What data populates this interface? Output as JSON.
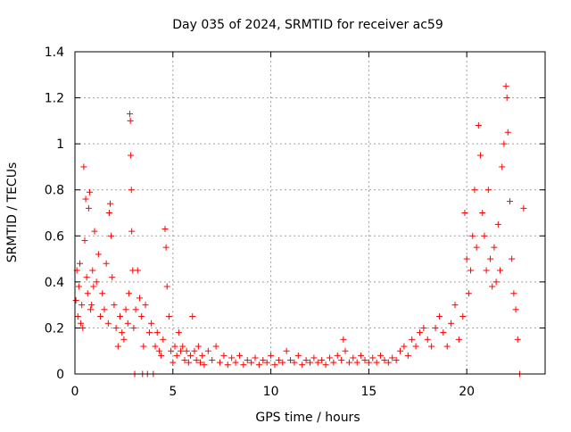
{
  "chart_data": {
    "type": "scatter",
    "title": "Day 035 of 2024, SRMTID for receiver ac59",
    "xlabel": "GPS time / hours",
    "ylabel": "SRMTID / TECUs",
    "xlim": [
      0,
      24
    ],
    "ylim": [
      0,
      1.4
    ],
    "x_ticks": [
      0,
      5,
      10,
      15,
      20
    ],
    "x_tick_labels": [
      "0",
      "5",
      "10",
      "15",
      "20"
    ],
    "y_ticks": [
      0,
      0.2,
      0.4,
      0.6,
      0.8,
      1.0,
      1.2,
      1.4
    ],
    "y_tick_labels": [
      "0",
      "0.2",
      "0.4",
      "0.6",
      "0.8",
      "1",
      "1.2",
      "1.4"
    ],
    "grid": true,
    "marker": "+",
    "series": [
      {
        "name": "ac59",
        "color": "#ff0000",
        "points": [
          [
            0.05,
            0.32
          ],
          [
            0.1,
            0.45
          ],
          [
            0.15,
            0.25
          ],
          [
            0.2,
            0.38
          ],
          [
            0.25,
            0.48
          ],
          [
            0.3,
            0.22
          ],
          [
            0.35,
            0.3
          ],
          [
            0.4,
            0.2
          ],
          [
            0.45,
            0.9
          ],
          [
            0.5,
            0.58
          ],
          [
            0.55,
            0.76
          ],
          [
            0.6,
            0.42
          ],
          [
            0.65,
            0.35
          ],
          [
            0.7,
            0.72
          ],
          [
            0.75,
            0.79
          ],
          [
            0.8,
            0.28
          ],
          [
            0.85,
            0.3
          ],
          [
            0.9,
            0.45
          ],
          [
            0.95,
            0.38
          ],
          [
            1.0,
            0.62
          ],
          [
            1.1,
            0.4
          ],
          [
            1.2,
            0.52
          ],
          [
            1.3,
            0.25
          ],
          [
            1.4,
            0.35
          ],
          [
            1.5,
            0.28
          ],
          [
            1.6,
            0.48
          ],
          [
            1.7,
            0.22
          ],
          [
            1.75,
            0.7
          ],
          [
            1.8,
            0.74
          ],
          [
            1.85,
            0.6
          ],
          [
            1.9,
            0.42
          ],
          [
            2.0,
            0.3
          ],
          [
            2.1,
            0.2
          ],
          [
            2.2,
            0.12
          ],
          [
            2.3,
            0.25
          ],
          [
            2.4,
            0.18
          ],
          [
            2.5,
            0.15
          ],
          [
            2.6,
            0.28
          ],
          [
            2.7,
            0.22
          ],
          [
            2.75,
            0.35
          ],
          [
            2.8,
            1.13
          ],
          [
            2.83,
            1.1
          ],
          [
            2.85,
            0.95
          ],
          [
            2.88,
            0.8
          ],
          [
            2.9,
            0.62
          ],
          [
            2.95,
            0.45
          ],
          [
            3.0,
            0.2
          ],
          [
            3.05,
            0.0
          ],
          [
            3.1,
            0.28
          ],
          [
            3.2,
            0.45
          ],
          [
            3.3,
            0.33
          ],
          [
            3.4,
            0.25
          ],
          [
            3.45,
            0.0
          ],
          [
            3.5,
            0.12
          ],
          [
            3.6,
            0.3
          ],
          [
            3.7,
            0.0
          ],
          [
            3.8,
            0.18
          ],
          [
            3.9,
            0.22
          ],
          [
            4.0,
            0.0
          ],
          [
            4.1,
            0.12
          ],
          [
            4.2,
            0.18
          ],
          [
            4.3,
            0.1
          ],
          [
            4.4,
            0.08
          ],
          [
            4.5,
            0.15
          ],
          [
            4.6,
            0.63
          ],
          [
            4.65,
            0.55
          ],
          [
            4.7,
            0.38
          ],
          [
            4.8,
            0.25
          ],
          [
            4.9,
            0.1
          ],
          [
            5.0,
            0.05
          ],
          [
            5.1,
            0.12
          ],
          [
            5.2,
            0.08
          ],
          [
            5.3,
            0.18
          ],
          [
            5.4,
            0.1
          ],
          [
            5.5,
            0.12
          ],
          [
            5.6,
            0.06
          ],
          [
            5.7,
            0.1
          ],
          [
            5.8,
            0.05
          ],
          [
            5.9,
            0.08
          ],
          [
            6.0,
            0.25
          ],
          [
            6.1,
            0.1
          ],
          [
            6.2,
            0.06
          ],
          [
            6.3,
            0.12
          ],
          [
            6.4,
            0.05
          ],
          [
            6.5,
            0.08
          ],
          [
            6.6,
            0.04
          ],
          [
            6.8,
            0.1
          ],
          [
            7.0,
            0.06
          ],
          [
            7.2,
            0.12
          ],
          [
            7.4,
            0.05
          ],
          [
            7.6,
            0.08
          ],
          [
            7.8,
            0.04
          ],
          [
            8.0,
            0.07
          ],
          [
            8.2,
            0.05
          ],
          [
            8.4,
            0.08
          ],
          [
            8.6,
            0.04
          ],
          [
            8.8,
            0.06
          ],
          [
            9.0,
            0.05
          ],
          [
            9.2,
            0.07
          ],
          [
            9.4,
            0.04
          ],
          [
            9.6,
            0.06
          ],
          [
            9.8,
            0.05
          ],
          [
            10.0,
            0.08
          ],
          [
            10.2,
            0.04
          ],
          [
            10.4,
            0.06
          ],
          [
            10.6,
            0.05
          ],
          [
            10.8,
            0.1
          ],
          [
            11.0,
            0.06
          ],
          [
            11.2,
            0.05
          ],
          [
            11.4,
            0.08
          ],
          [
            11.6,
            0.04
          ],
          [
            11.8,
            0.06
          ],
          [
            12.0,
            0.05
          ],
          [
            12.2,
            0.07
          ],
          [
            12.4,
            0.05
          ],
          [
            12.6,
            0.06
          ],
          [
            12.8,
            0.04
          ],
          [
            13.0,
            0.07
          ],
          [
            13.2,
            0.05
          ],
          [
            13.4,
            0.08
          ],
          [
            13.6,
            0.06
          ],
          [
            13.7,
            0.15
          ],
          [
            13.8,
            0.1
          ],
          [
            14.0,
            0.05
          ],
          [
            14.2,
            0.07
          ],
          [
            14.4,
            0.05
          ],
          [
            14.6,
            0.08
          ],
          [
            14.8,
            0.06
          ],
          [
            15.0,
            0.05
          ],
          [
            15.2,
            0.07
          ],
          [
            15.4,
            0.05
          ],
          [
            15.6,
            0.08
          ],
          [
            15.8,
            0.06
          ],
          [
            16.0,
            0.05
          ],
          [
            16.2,
            0.07
          ],
          [
            16.4,
            0.06
          ],
          [
            16.6,
            0.1
          ],
          [
            16.8,
            0.12
          ],
          [
            17.0,
            0.08
          ],
          [
            17.2,
            0.15
          ],
          [
            17.4,
            0.12
          ],
          [
            17.6,
            0.18
          ],
          [
            17.8,
            0.2
          ],
          [
            18.0,
            0.15
          ],
          [
            18.2,
            0.12
          ],
          [
            18.4,
            0.2
          ],
          [
            18.6,
            0.25
          ],
          [
            18.8,
            0.18
          ],
          [
            19.0,
            0.12
          ],
          [
            19.2,
            0.22
          ],
          [
            19.4,
            0.3
          ],
          [
            19.6,
            0.15
          ],
          [
            19.8,
            0.25
          ],
          [
            19.9,
            0.7
          ],
          [
            20.0,
            0.5
          ],
          [
            20.1,
            0.35
          ],
          [
            20.2,
            0.45
          ],
          [
            20.3,
            0.6
          ],
          [
            20.4,
            0.8
          ],
          [
            20.5,
            0.55
          ],
          [
            20.6,
            1.08
          ],
          [
            20.7,
            0.95
          ],
          [
            20.8,
            0.7
          ],
          [
            20.9,
            0.6
          ],
          [
            21.0,
            0.45
          ],
          [
            21.1,
            0.8
          ],
          [
            21.2,
            0.5
          ],
          [
            21.3,
            0.38
          ],
          [
            21.4,
            0.55
          ],
          [
            21.5,
            0.4
          ],
          [
            21.6,
            0.65
          ],
          [
            21.7,
            0.45
          ],
          [
            21.8,
            0.9
          ],
          [
            21.9,
            1.0
          ],
          [
            22.0,
            1.25
          ],
          [
            22.05,
            1.2
          ],
          [
            22.1,
            1.05
          ],
          [
            22.2,
            0.75
          ],
          [
            22.3,
            0.5
          ],
          [
            22.4,
            0.35
          ],
          [
            22.5,
            0.28
          ],
          [
            22.6,
            0.15
          ],
          [
            22.7,
            0.0
          ],
          [
            22.9,
            0.72
          ]
        ]
      }
    ]
  }
}
